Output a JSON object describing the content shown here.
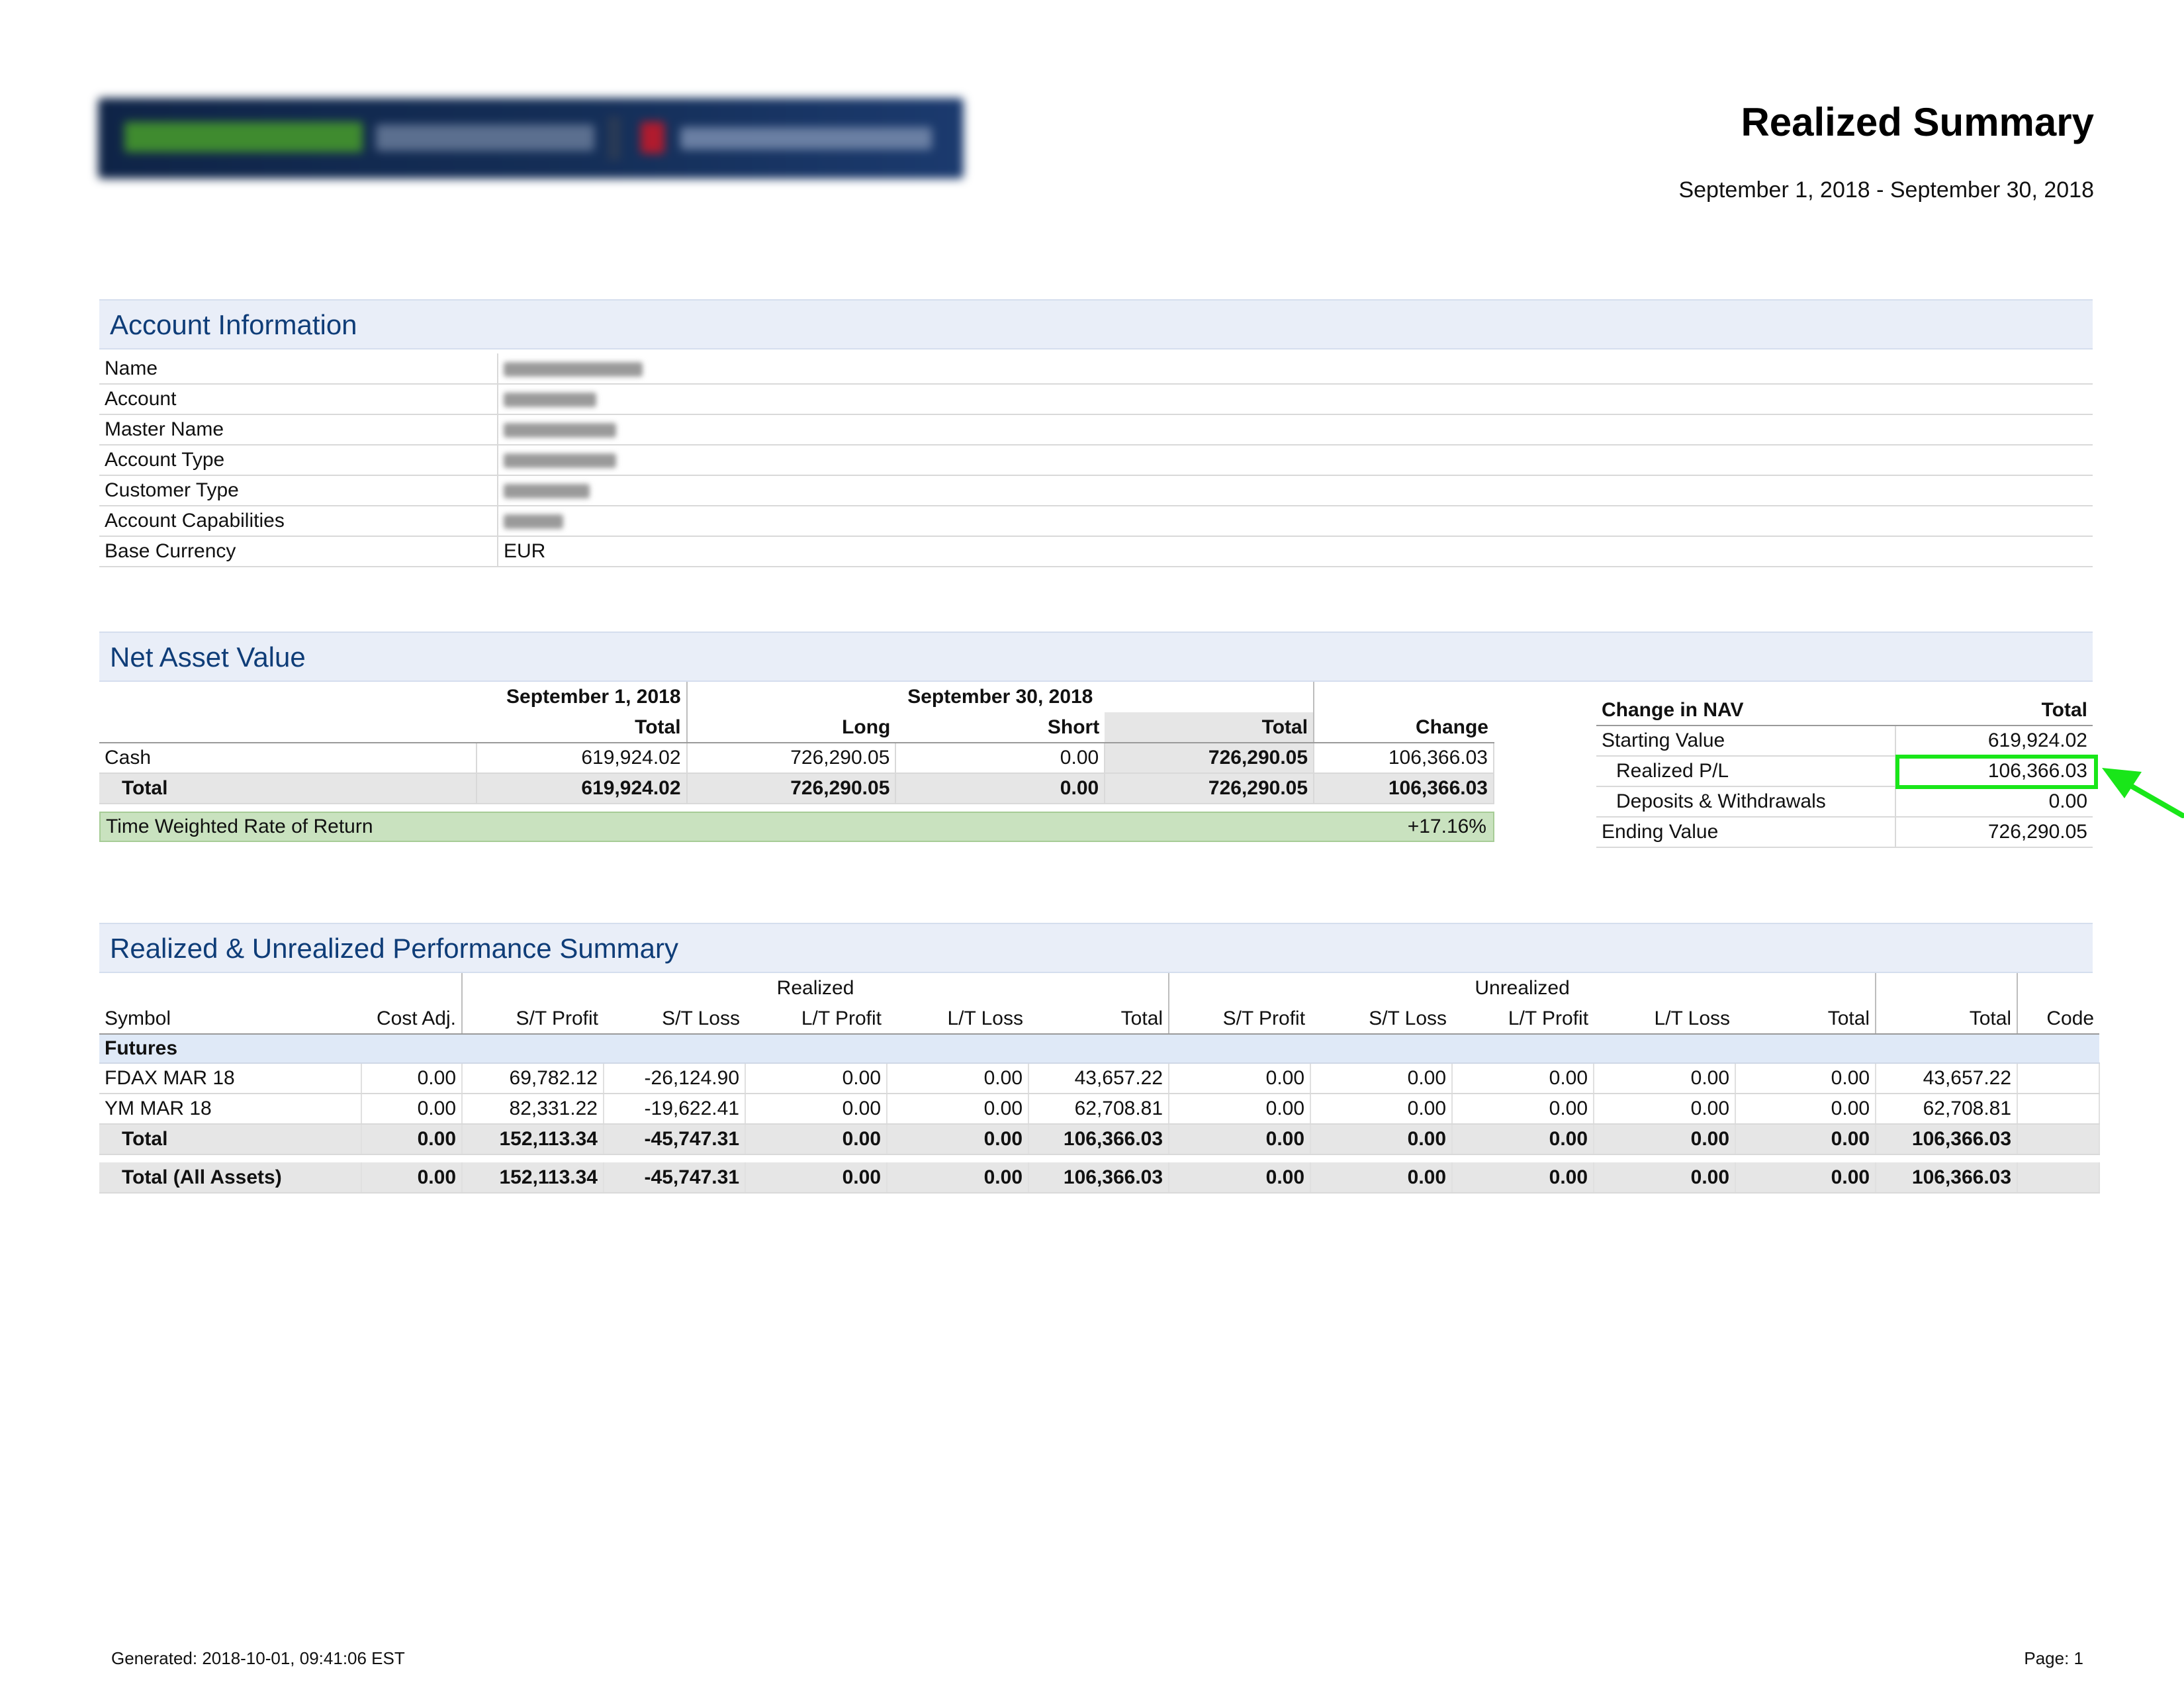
{
  "header": {
    "title": "Realized Summary",
    "period": "September 1, 2018 - September 30, 2018"
  },
  "account_info": {
    "section_title": "Account Information",
    "rows": [
      {
        "label": "Name",
        "value": ""
      },
      {
        "label": "Account",
        "value": ""
      },
      {
        "label": "Master Name",
        "value": ""
      },
      {
        "label": "Account Type",
        "value": ""
      },
      {
        "label": "Customer Type",
        "value": ""
      },
      {
        "label": "Account Capabilities",
        "value": ""
      },
      {
        "label": "Base Currency",
        "value": "EUR"
      }
    ]
  },
  "nav": {
    "section_title": "Net Asset Value",
    "date_start": "September 1, 2018",
    "date_end": "September 30, 2018",
    "col_total": "Total",
    "col_long": "Long",
    "col_short": "Short",
    "col_total2": "Total",
    "col_change": "Change",
    "rows": [
      {
        "label": "Cash",
        "start_total": "619,924.02",
        "long": "726,290.05",
        "short": "0.00",
        "end_total": "726,290.05",
        "change": "106,366.03"
      },
      {
        "label": "Total",
        "start_total": "619,924.02",
        "long": "726,290.05",
        "short": "0.00",
        "end_total": "726,290.05",
        "change": "106,366.03"
      }
    ],
    "twrr_label": "Time Weighted Rate of Return",
    "twrr_value": "+17.16%"
  },
  "change_in_nav": {
    "header_label": "Change in NAV",
    "header_total": "Total",
    "rows": [
      {
        "label": "Starting Value",
        "value": "619,924.02"
      },
      {
        "label": "Realized P/L",
        "value": "106,366.03"
      },
      {
        "label": "Deposits & Withdrawals",
        "value": "0.00"
      },
      {
        "label": "Ending Value",
        "value": "726,290.05"
      }
    ],
    "highlight_color": "#19e619"
  },
  "performance": {
    "section_title": "Realized & Unrealized Performance Summary",
    "group_realized": "Realized",
    "group_unrealized": "Unrealized",
    "columns": [
      "Symbol",
      "Cost Adj.",
      "S/T Profit",
      "S/T Loss",
      "L/T Profit",
      "L/T Loss",
      "Total",
      "S/T Profit",
      "S/T Loss",
      "L/T Profit",
      "L/T Loss",
      "Total",
      "Total",
      "Code"
    ],
    "category": "Futures",
    "rows": [
      {
        "symbol": "FDAX MAR 18",
        "values": [
          "0.00",
          "69,782.12",
          "-26,124.90",
          "0.00",
          "0.00",
          "43,657.22",
          "0.00",
          "0.00",
          "0.00",
          "0.00",
          "0.00",
          "43,657.22",
          ""
        ]
      },
      {
        "symbol": "YM MAR 18",
        "values": [
          "0.00",
          "82,331.22",
          "-19,622.41",
          "0.00",
          "0.00",
          "62,708.81",
          "0.00",
          "0.00",
          "0.00",
          "0.00",
          "0.00",
          "62,708.81",
          ""
        ]
      }
    ],
    "total_row": {
      "symbol": "Total",
      "values": [
        "0.00",
        "152,113.34",
        "-45,747.31",
        "0.00",
        "0.00",
        "106,366.03",
        "0.00",
        "0.00",
        "0.00",
        "0.00",
        "0.00",
        "106,366.03",
        ""
      ]
    },
    "all_assets_row": {
      "symbol": "Total (All Assets)",
      "values": [
        "0.00",
        "152,113.34",
        "-45,747.31",
        "0.00",
        "0.00",
        "106,366.03",
        "0.00",
        "0.00",
        "0.00",
        "0.00",
        "0.00",
        "106,366.03",
        ""
      ]
    }
  },
  "footer": {
    "generated": "Generated: 2018-10-01, 09:41:06 EST",
    "page": "Page: 1"
  }
}
